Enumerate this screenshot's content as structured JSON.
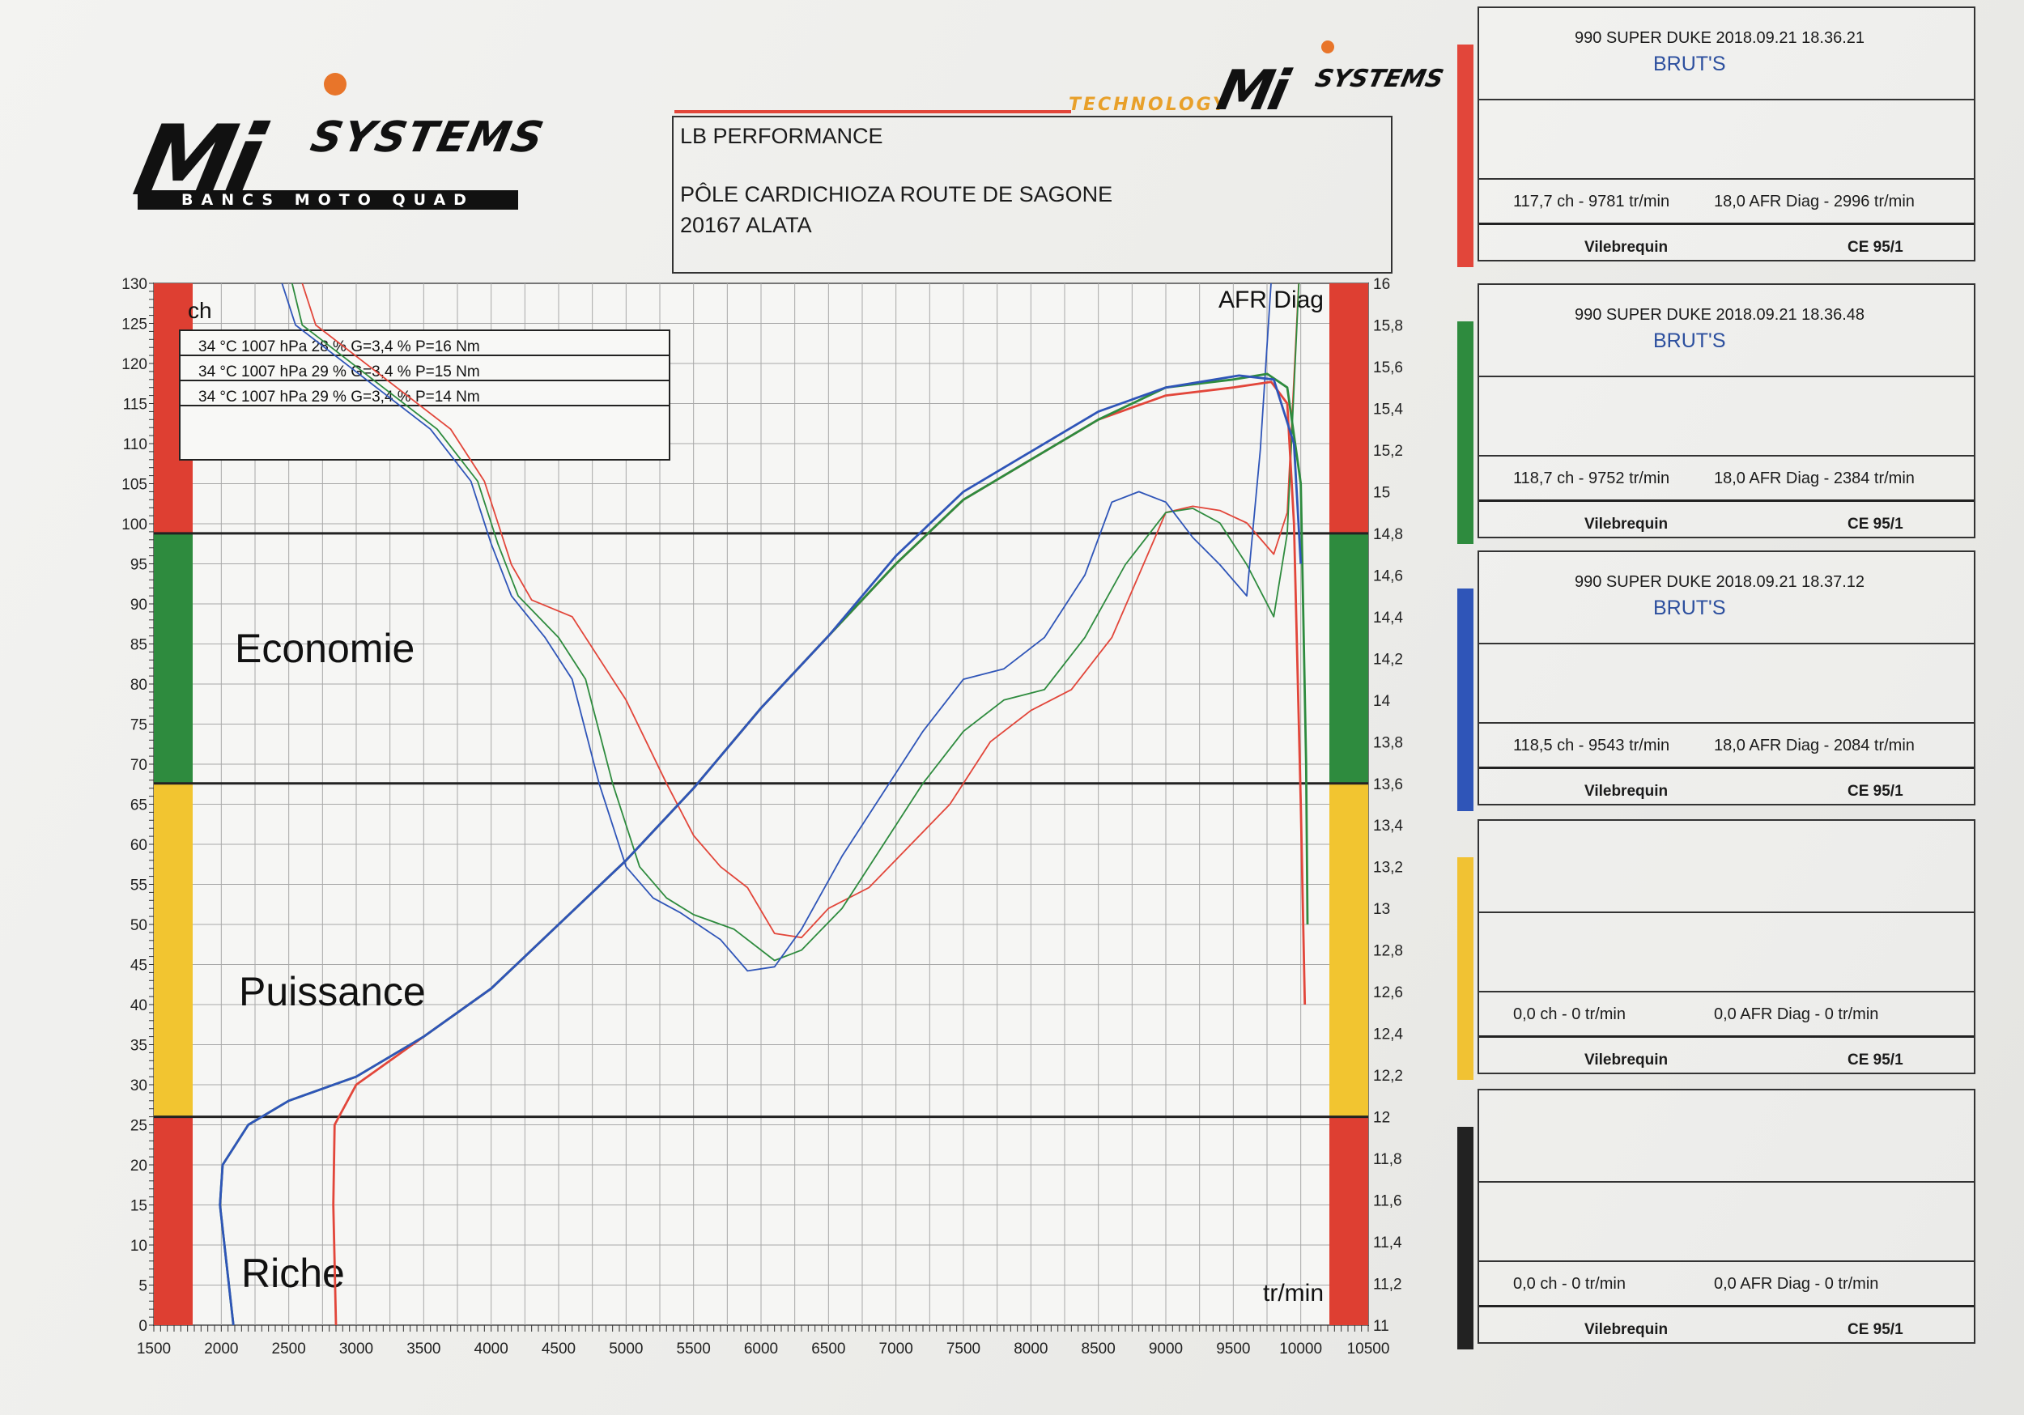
{
  "logo_left": {
    "mi": "Mi",
    "systems": "SYSTEMS",
    "band": "BANCS MOTO QUAD"
  },
  "logo_right": {
    "tech": "TECHNOLOGY",
    "mi": "Mi",
    "systems": "SYSTEMS"
  },
  "address": {
    "company": "LB PERFORMANCE",
    "line1": "PÔLE CARDICHIOZA ROUTE DE SAGONE",
    "line2": "20167 ALATA"
  },
  "conditions": [
    "34 °C   1007 hPa   28 %   G=3,4 %   P=16 Nm",
    "34 °C   1007 hPa   29 %   G=3,4 %   P=15 Nm",
    "34 °C   1007 hPa   29 %   G=3,4 %   P=14 Nm"
  ],
  "zones": {
    "economie": "Economie",
    "puissance": "Puissance",
    "riche": "Riche"
  },
  "colors": {
    "red": "#e2463a",
    "green": "#2e8b3e",
    "blue": "#2f55b8",
    "yellow": "#f1c233",
    "black": "#222222",
    "zone_green": "#2e8b3e",
    "zone_red": "#de3f32",
    "zone_yellow": "#f2c530"
  },
  "chart_data": {
    "type": "line",
    "xlabel": "tr/min",
    "ylabel_left": "ch",
    "ylabel_right": "AFR Diag",
    "xlim": [
      1500,
      10500
    ],
    "ylim_left": [
      0,
      130
    ],
    "ylim_right": [
      11,
      16
    ],
    "x_ticks": [
      "1500",
      "2000",
      "2500",
      "3000",
      "3500",
      "4000",
      "4500",
      "5000",
      "5500",
      "6000",
      "6500",
      "7000",
      "7500",
      "8000",
      "8500",
      "9000",
      "9500",
      "10000",
      "10500"
    ],
    "y_ticks_left": [
      "0",
      "5",
      "10",
      "15",
      "20",
      "25",
      "30",
      "35",
      "40",
      "45",
      "50",
      "55",
      "60",
      "65",
      "70",
      "75",
      "80",
      "85",
      "90",
      "95",
      "100",
      "105",
      "110",
      "115",
      "120",
      "125",
      "130"
    ],
    "y_ticks_right": [
      "11",
      "11,2",
      "11,4",
      "11,6",
      "11,8",
      "12",
      "12,2",
      "12,4",
      "12,6",
      "12,8",
      "13",
      "13,2",
      "13,4",
      "13,6",
      "13,8",
      "14",
      "14,2",
      "14,4",
      "14,6",
      "14,8",
      "15",
      "15,2",
      "15,4",
      "15,6",
      "15,8",
      "16"
    ],
    "zone_lines_afr": [
      12,
      13.6,
      14.8
    ],
    "grid": true,
    "series": [
      {
        "name": "990 SUPER DUKE 2018.09.21 18.36.21",
        "color": "#e2463a",
        "power": [
          [
            2850,
            0
          ],
          [
            2830,
            15
          ],
          [
            2840,
            25
          ],
          [
            3000,
            30
          ],
          [
            3500,
            36
          ],
          [
            4000,
            42
          ],
          [
            4500,
            50
          ],
          [
            5000,
            58
          ],
          [
            5500,
            67
          ],
          [
            6000,
            77
          ],
          [
            6500,
            86
          ],
          [
            7000,
            95
          ],
          [
            7500,
            103
          ],
          [
            8000,
            108
          ],
          [
            8500,
            113
          ],
          [
            9000,
            116
          ],
          [
            9500,
            117
          ],
          [
            9781,
            117.7
          ],
          [
            9900,
            115
          ],
          [
            9950,
            100
          ],
          [
            10000,
            65
          ],
          [
            10030,
            40
          ]
        ],
        "afr": [
          [
            2500,
            16.2
          ],
          [
            2700,
            15.8
          ],
          [
            2900,
            15.7
          ],
          [
            3300,
            15.5
          ],
          [
            3700,
            15.3
          ],
          [
            3950,
            15.05
          ],
          [
            4050,
            14.85
          ],
          [
            4150,
            14.65
          ],
          [
            4300,
            14.48
          ],
          [
            4600,
            14.4
          ],
          [
            5000,
            14.0
          ],
          [
            5300,
            13.6
          ],
          [
            5500,
            13.35
          ],
          [
            5700,
            13.2
          ],
          [
            5900,
            13.1
          ],
          [
            6100,
            12.88
          ],
          [
            6300,
            12.86
          ],
          [
            6500,
            13.0
          ],
          [
            6800,
            13.1
          ],
          [
            7100,
            13.3
          ],
          [
            7400,
            13.5
          ],
          [
            7700,
            13.8
          ],
          [
            8000,
            13.95
          ],
          [
            8300,
            14.05
          ],
          [
            8600,
            14.3
          ],
          [
            8800,
            14.6
          ],
          [
            9000,
            14.9
          ],
          [
            9200,
            14.93
          ],
          [
            9400,
            14.91
          ],
          [
            9600,
            14.85
          ],
          [
            9800,
            14.7
          ],
          [
            9900,
            14.9
          ],
          [
            10000,
            16.2
          ]
        ]
      },
      {
        "name": "990 SUPER DUKE 2018.09.21 18.36.48",
        "color": "#2e8b3e",
        "power": [
          [
            2090,
            0
          ],
          [
            1990,
            15
          ],
          [
            2010,
            20
          ],
          [
            2200,
            25
          ],
          [
            2500,
            28
          ],
          [
            3000,
            31
          ],
          [
            3500,
            36
          ],
          [
            4000,
            42
          ],
          [
            4500,
            50
          ],
          [
            5000,
            58
          ],
          [
            5500,
            67
          ],
          [
            6000,
            77
          ],
          [
            6500,
            86
          ],
          [
            7000,
            95
          ],
          [
            7500,
            103
          ],
          [
            8000,
            108
          ],
          [
            8500,
            113
          ],
          [
            9000,
            117
          ],
          [
            9500,
            118
          ],
          [
            9752,
            118.7
          ],
          [
            9900,
            117
          ],
          [
            10000,
            105
          ],
          [
            10040,
            70
          ],
          [
            10050,
            50
          ]
        ],
        "afr": [
          [
            2450,
            16.2
          ],
          [
            2600,
            15.8
          ],
          [
            2800,
            15.7
          ],
          [
            3200,
            15.5
          ],
          [
            3600,
            15.3
          ],
          [
            3900,
            15.05
          ],
          [
            4050,
            14.75
          ],
          [
            4200,
            14.5
          ],
          [
            4500,
            14.3
          ],
          [
            4700,
            14.1
          ],
          [
            4900,
            13.6
          ],
          [
            5100,
            13.2
          ],
          [
            5300,
            13.05
          ],
          [
            5500,
            12.97
          ],
          [
            5800,
            12.9
          ],
          [
            6100,
            12.75
          ],
          [
            6300,
            12.8
          ],
          [
            6600,
            13.0
          ],
          [
            6900,
            13.3
          ],
          [
            7200,
            13.6
          ],
          [
            7500,
            13.85
          ],
          [
            7800,
            14.0
          ],
          [
            8100,
            14.05
          ],
          [
            8400,
            14.3
          ],
          [
            8700,
            14.65
          ],
          [
            9000,
            14.9
          ],
          [
            9200,
            14.92
          ],
          [
            9400,
            14.85
          ],
          [
            9600,
            14.65
          ],
          [
            9800,
            14.4
          ],
          [
            9900,
            14.8
          ],
          [
            10000,
            16.2
          ]
        ]
      },
      {
        "name": "990 SUPER DUKE 2018.09.21 18.37.12",
        "color": "#2f55b8",
        "power": [
          [
            2090,
            0
          ],
          [
            1990,
            15
          ],
          [
            2010,
            20
          ],
          [
            2200,
            25
          ],
          [
            2500,
            28
          ],
          [
            3000,
            31
          ],
          [
            3500,
            36
          ],
          [
            4000,
            42
          ],
          [
            4500,
            50
          ],
          [
            5000,
            58
          ],
          [
            5500,
            67
          ],
          [
            6000,
            77
          ],
          [
            6500,
            86
          ],
          [
            7000,
            96
          ],
          [
            7500,
            104
          ],
          [
            8000,
            109
          ],
          [
            8500,
            114
          ],
          [
            9000,
            117
          ],
          [
            9543,
            118.5
          ],
          [
            9800,
            118
          ],
          [
            9950,
            110
          ],
          [
            10000,
            95
          ]
        ],
        "afr": [
          [
            2350,
            16.2
          ],
          [
            2550,
            15.8
          ],
          [
            2750,
            15.7
          ],
          [
            3150,
            15.5
          ],
          [
            3550,
            15.3
          ],
          [
            3850,
            15.05
          ],
          [
            4000,
            14.75
          ],
          [
            4150,
            14.5
          ],
          [
            4400,
            14.3
          ],
          [
            4600,
            14.1
          ],
          [
            4800,
            13.6
          ],
          [
            5000,
            13.2
          ],
          [
            5200,
            13.05
          ],
          [
            5400,
            12.98
          ],
          [
            5700,
            12.85
          ],
          [
            5900,
            12.7
          ],
          [
            6100,
            12.72
          ],
          [
            6300,
            12.9
          ],
          [
            6600,
            13.25
          ],
          [
            6900,
            13.55
          ],
          [
            7200,
            13.85
          ],
          [
            7500,
            14.1
          ],
          [
            7800,
            14.15
          ],
          [
            8100,
            14.3
          ],
          [
            8400,
            14.6
          ],
          [
            8600,
            14.95
          ],
          [
            8800,
            15.0
          ],
          [
            9000,
            14.95
          ],
          [
            9200,
            14.78
          ],
          [
            9400,
            14.65
          ],
          [
            9600,
            14.5
          ],
          [
            9700,
            15.2
          ],
          [
            9800,
            16.2
          ]
        ]
      }
    ]
  },
  "panels": [
    {
      "title": "990 SUPER DUKE   2018.09.21 18.36.21",
      "name": "BRUT'S",
      "summary_ch": "117,7 ch - 9781 tr/min",
      "summary_afr": "18,0 AFR Diag - 2996 tr/min",
      "footer_left": "Vilebrequin",
      "footer_right": "CE 95/1",
      "strip_color": "#e2463a"
    },
    {
      "title": "990 SUPER DUKE   2018.09.21 18.36.48",
      "name": "BRUT'S",
      "summary_ch": "118,7 ch - 9752 tr/min",
      "summary_afr": "18,0 AFR Diag - 2384 tr/min",
      "footer_left": "Vilebrequin",
      "footer_right": "CE 95/1",
      "strip_color": "#2e8b3e"
    },
    {
      "title": "990 SUPER DUKE   2018.09.21 18.37.12",
      "name": "BRUT'S",
      "summary_ch": "118,5 ch - 9543 tr/min",
      "summary_afr": "18,0 AFR Diag - 2084 tr/min",
      "footer_left": "Vilebrequin",
      "footer_right": "CE 95/1",
      "strip_color": "#2f55b8"
    },
    {
      "title": "",
      "name": "",
      "summary_ch": "0,0 ch - 0 tr/min",
      "summary_afr": "0,0 AFR Diag - 0 tr/min",
      "footer_left": "Vilebrequin",
      "footer_right": "CE 95/1",
      "strip_color": "#f1c233"
    },
    {
      "title": "",
      "name": "",
      "summary_ch": "0,0 ch - 0 tr/min",
      "summary_afr": "0,0 AFR Diag - 0 tr/min",
      "footer_left": "Vilebrequin",
      "footer_right": "CE 95/1",
      "strip_color": "#222222"
    }
  ]
}
